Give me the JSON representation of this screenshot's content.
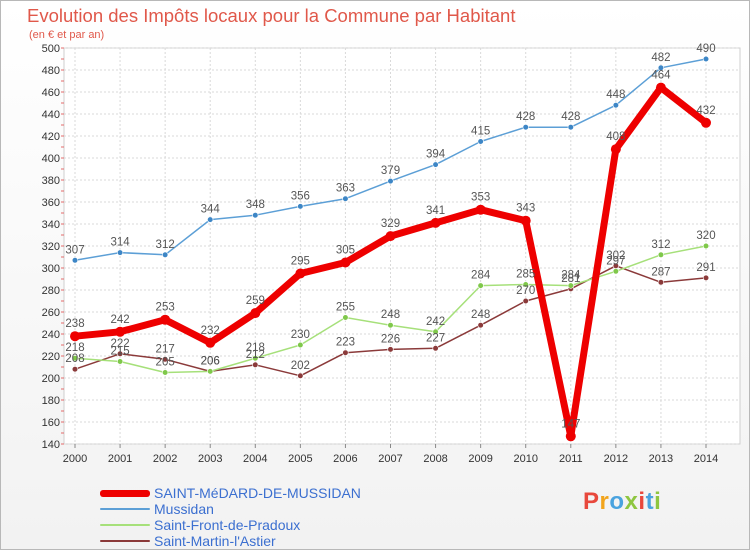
{
  "header": {
    "title": "Evolution des Impôts locaux pour la Commune par Habitant",
    "subtitle": "(en € et par an)"
  },
  "logo": {
    "text": "Proxiti",
    "colors": [
      "#e8483c",
      "#f2a41b",
      "#4aa3df",
      "#8ec640",
      "#e8483c",
      "#4aa3df",
      "#8ec640"
    ]
  },
  "chart_data": {
    "type": "line",
    "title": "Evolution des Impôts locaux pour la Commune par Habitant",
    "subtitle": "(en € et par an)",
    "xlabel": "",
    "ylabel": "",
    "x": [
      "2000",
      "2001",
      "2002",
      "2003",
      "2004",
      "2005",
      "2006",
      "2007",
      "2008",
      "2009",
      "2010",
      "2011",
      "2012",
      "2013",
      "2014"
    ],
    "ylim": [
      140,
      500
    ],
    "yticks": [
      140,
      160,
      180,
      200,
      220,
      240,
      260,
      280,
      300,
      320,
      340,
      360,
      380,
      400,
      420,
      440,
      460,
      480,
      500
    ],
    "grid": true,
    "legend_position": "bottom-left",
    "series": [
      {
        "name": "Saint-Martin-l'Astier",
        "color": "#8b3a3a",
        "label_color": "#555555",
        "width": 1.5,
        "marker": 4,
        "values": [
          208,
          222,
          217,
          206,
          212,
          202,
          223,
          226,
          227,
          248,
          270,
          281,
          302,
          287,
          291
        ]
      },
      {
        "name": "Saint-Front-de-Pradoux",
        "color": "#a6e07a",
        "marker_color": "#7fc84a",
        "label_color": "#555555",
        "width": 1.5,
        "marker": 4,
        "values": [
          218,
          215,
          205,
          206,
          218,
          230,
          255,
          248,
          242,
          284,
          285,
          284,
          297,
          312,
          320
        ]
      },
      {
        "name": "Mussidan",
        "color": "#5c9fd6",
        "marker_color": "#3d86c6",
        "label_color": "#555555",
        "width": 1.5,
        "marker": 4,
        "values": [
          307,
          314,
          312,
          344,
          348,
          356,
          363,
          379,
          394,
          415,
          428,
          428,
          448,
          482,
          490
        ]
      },
      {
        "name": "SAINT-MéDARD-DE-MUSSIDAN",
        "color": "#ee0000",
        "label_color": "#555555",
        "width": 7,
        "marker": 7,
        "values": [
          238,
          242,
          253,
          232,
          259,
          295,
          305,
          329,
          341,
          353,
          343,
          147,
          408,
          464,
          432
        ]
      }
    ]
  },
  "legend": {
    "items": [
      {
        "label": "SAINT-MéDARD-DE-MUSSIDAN",
        "color": "#ee0000",
        "label_color": "#3b6fd0",
        "thickness": 7
      },
      {
        "label": "Mussidan",
        "color": "#5c9fd6",
        "label_color": "#3b6fd0",
        "thickness": 2
      },
      {
        "label": "Saint-Front-de-Pradoux",
        "color": "#a6e07a",
        "label_color": "#3b6fd0",
        "thickness": 2
      },
      {
        "label": "Saint-Martin-l'Astier",
        "color": "#8b3a3a",
        "label_color": "#3b6fd0",
        "thickness": 2
      }
    ]
  }
}
